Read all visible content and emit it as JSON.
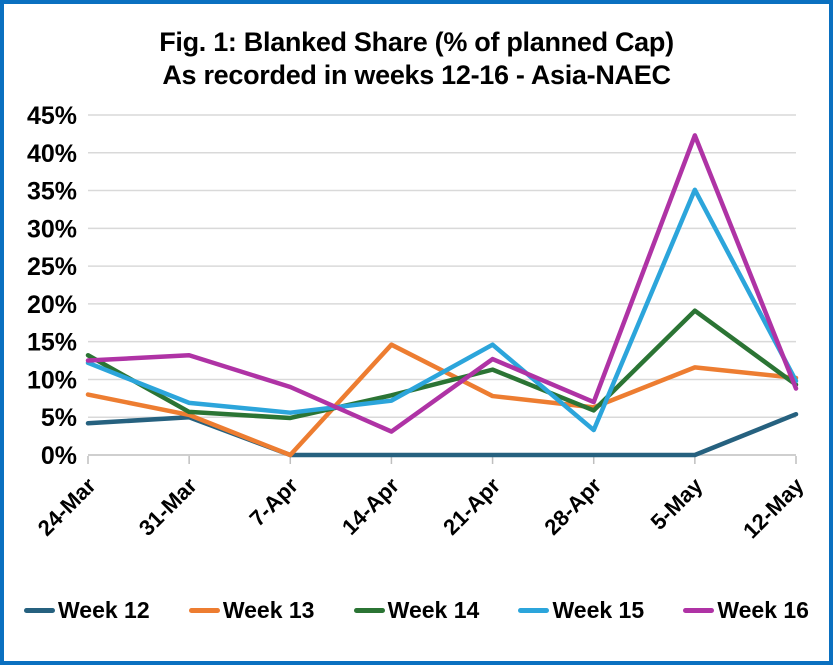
{
  "frame": {
    "border_color": "#0A70C0",
    "background": "#FFFFFF"
  },
  "title": {
    "line1": "Fig. 1: Blanked Share (% of planned Cap)",
    "line2": "As recorded in weeks 12-16 - Asia-NAEC"
  },
  "chart_data": {
    "type": "line",
    "title": "Fig. 1: Blanked Share (% of planned Cap) As recorded in weeks 12-16 - Asia-NAEC",
    "xlabel": "",
    "ylabel": "",
    "ylim": [
      0,
      45
    ],
    "y_tick_step": 5,
    "y_tick_labels": [
      "0%",
      "5%",
      "10%",
      "15%",
      "20%",
      "25%",
      "30%",
      "35%",
      "40%",
      "45%"
    ],
    "grid": "horizontal",
    "gridline_color": "#D9D9D9",
    "axis_color": "#BFBFBF",
    "legend_position": "bottom",
    "line_width": 4.5,
    "categories": [
      "24-Mar",
      "31-Mar",
      "7-Apr",
      "14-Apr",
      "21-Apr",
      "28-Apr",
      "5-May",
      "12-May"
    ],
    "series": [
      {
        "name": "Week 12",
        "color": "#26617F",
        "values": [
          4.2,
          5.0,
          0,
          0,
          0,
          0,
          0,
          5.4
        ]
      },
      {
        "name": "Week 13",
        "color": "#ED7D31",
        "values": [
          8.0,
          5.3,
          0,
          14.6,
          7.8,
          6.3,
          11.6,
          10.2
        ]
      },
      {
        "name": "Week 14",
        "color": "#2B7434",
        "values": [
          13.2,
          5.7,
          4.9,
          7.9,
          11.3,
          5.9,
          19.1,
          9.3
        ]
      },
      {
        "name": "Week 15",
        "color": "#2CA5DB",
        "values": [
          12.2,
          6.9,
          5.6,
          7.2,
          14.6,
          3.3,
          35.1,
          9.8
        ]
      },
      {
        "name": "Week 16",
        "color": "#AF33A5",
        "values": [
          12.5,
          13.2,
          9.0,
          3.1,
          12.7,
          7.0,
          42.3,
          8.8
        ]
      }
    ]
  }
}
